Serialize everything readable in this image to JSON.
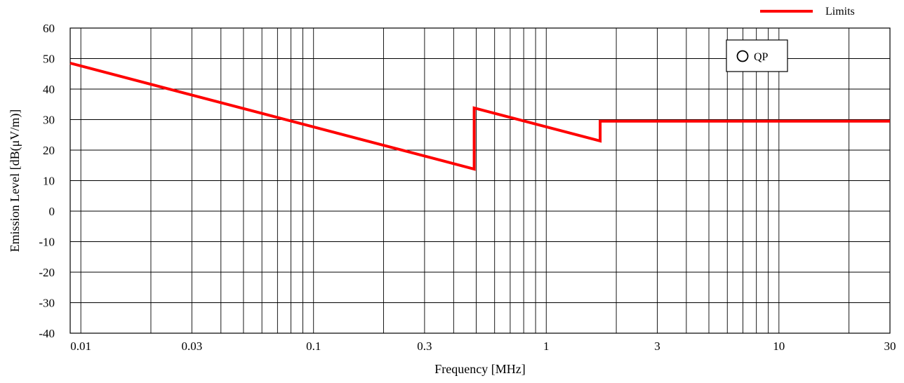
{
  "chart_data": {
    "type": "line",
    "xscale": "log",
    "xlabel": "Frequency [MHz]",
    "ylabel": "Emission Level [dB(μV/m)]",
    "xlim": [
      0.009,
      30
    ],
    "ylim": [
      -40,
      60
    ],
    "xticks": [
      0.01,
      0.03,
      0.1,
      0.3,
      1,
      3,
      10,
      30
    ],
    "xtick_labels": [
      "0.01",
      "0.03",
      "0.1",
      "0.3",
      "1",
      "3",
      "10",
      "30"
    ],
    "yticks": [
      -40,
      -30,
      -20,
      -10,
      0,
      10,
      20,
      30,
      40,
      50,
      60
    ],
    "ytick_labels": [
      "-40",
      "-30",
      "-20",
      "-10",
      "0",
      "10",
      "20",
      "30",
      "40",
      "50",
      "60"
    ],
    "grid": true,
    "legend_position": "top-right",
    "series": [
      {
        "name": "Limits",
        "color": "#ff0000",
        "x": [
          0.009,
          0.49,
          0.49,
          1.705,
          1.705,
          30
        ],
        "y": [
          48.5,
          13.8,
          33.8,
          23.0,
          29.5,
          29.5
        ]
      }
    ],
    "marker_legend": {
      "label": "QP",
      "symbol": "open-circle"
    }
  }
}
